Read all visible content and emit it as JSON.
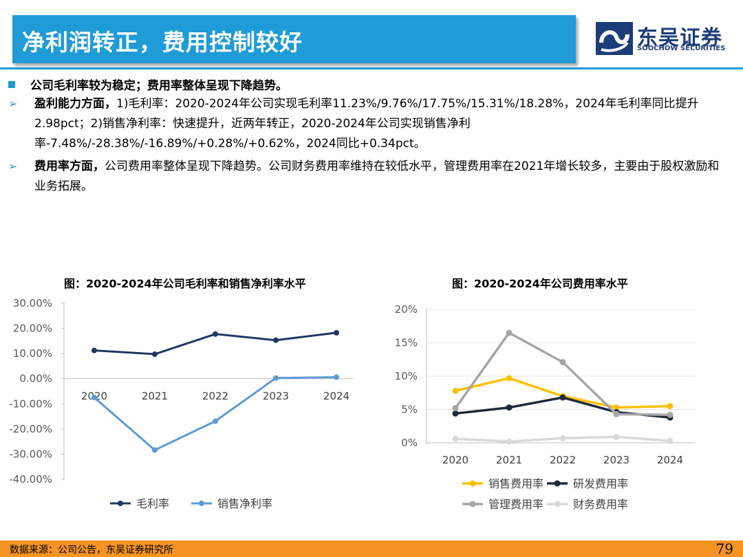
{
  "header": {
    "title": "净利润转正，费用控制较好",
    "logo_cn": "东吴证券",
    "logo_en": "SOOCHOW SECURITIES"
  },
  "summary": "公司毛利率较为稳定；费用率整体呈现下降趋势。",
  "points": [
    {
      "lead": "盈利能力方面，",
      "text": "1)毛利率：2020-2024年公司实现毛利率11.23%/9.76%/17.75%/15.31%/18.28%，2024年毛利率同比提升2.98pct；2)销售净利率：快速提升，近两年转正，2020-2024年公司实现销售净利率-7.48%/-28.38%/-16.89%/+0.28%/+0.62%，2024同比+0.34pct。"
    },
    {
      "lead": "费用率方面，",
      "text": "公司费用率整体呈现下降趋势。公司财务费用率维持在较低水平，管理费用率在2021年增长较多，主要由于股权激励和业务拓展。"
    }
  ],
  "chart_data": [
    {
      "type": "line",
      "title": "图：2020-2024年公司毛利率和销售净利率水平",
      "categories": [
        "2020",
        "2021",
        "2022",
        "2023",
        "2024"
      ],
      "y_ticks": [
        "30.00%",
        "20.00%",
        "10.00%",
        "0.00%",
        "-10.00%",
        "-20.00%",
        "-30.00%",
        "-40.00%"
      ],
      "ylim": [
        -40,
        30
      ],
      "series": [
        {
          "name": "毛利率",
          "color": "#1f3864",
          "values": [
            11.23,
            9.76,
            17.75,
            15.31,
            18.28
          ]
        },
        {
          "name": "销售净利率",
          "color": "#5b9bd5",
          "values": [
            -7.48,
            -28.38,
            -16.89,
            0.28,
            0.62
          ]
        }
      ]
    },
    {
      "type": "line",
      "title": "图：2020-2024年公司费用率水平",
      "categories": [
        "2020",
        "2021",
        "2022",
        "2023",
        "2024"
      ],
      "y_ticks": [
        "20%",
        "15%",
        "10%",
        "5%",
        "0%"
      ],
      "ylim": [
        0,
        20
      ],
      "series": [
        {
          "name": "销售费用率",
          "color": "#ffc000",
          "values": [
            7.8,
            9.7,
            7.0,
            5.3,
            5.5
          ]
        },
        {
          "name": "研发费用率",
          "color": "#1e2a3a",
          "values": [
            4.4,
            5.3,
            6.8,
            4.6,
            3.8
          ]
        },
        {
          "name": "管理费用率",
          "color": "#a6a6a6",
          "values": [
            5.2,
            16.5,
            12.1,
            4.3,
            4.2
          ]
        },
        {
          "name": "财务费用率",
          "color": "#d9d9d9",
          "values": [
            0.6,
            0.2,
            0.7,
            0.9,
            0.3
          ]
        }
      ]
    }
  ],
  "footer": {
    "source": "数据来源：公司公告，东吴证券研究所",
    "page": "79"
  }
}
